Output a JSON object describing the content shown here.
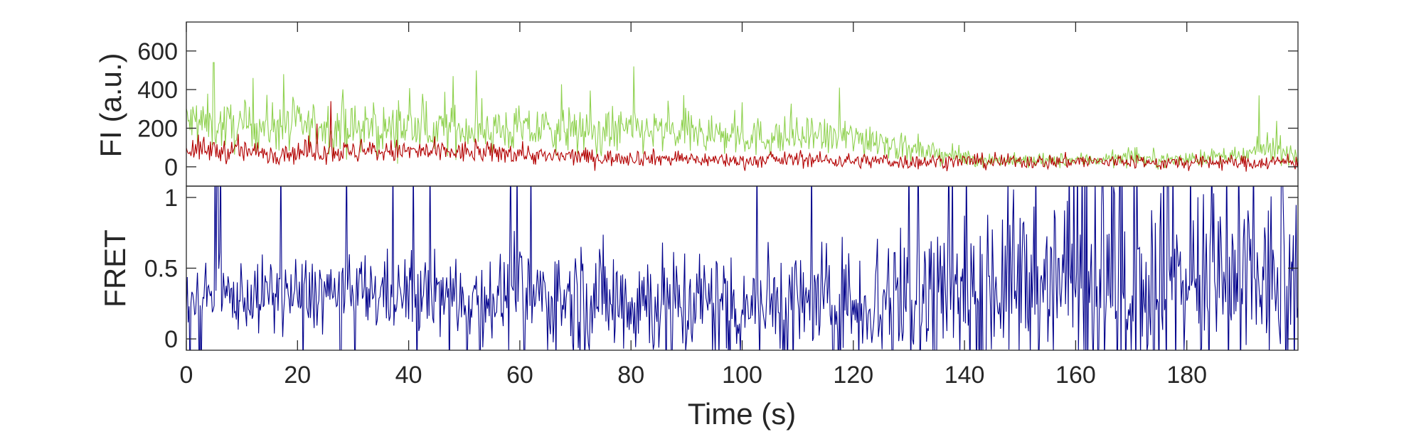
{
  "chart_data": [
    {
      "type": "line",
      "panel": "intensity",
      "ylabel": "FI (a.u.)",
      "xlabel": "",
      "xlim": [
        0,
        200
      ],
      "ylim": [
        -100,
        750
      ],
      "yticks": [
        0,
        200,
        400,
        600
      ],
      "ytick_labels": [
        "0",
        "200",
        "400",
        "600"
      ],
      "grid": false,
      "legend": "none",
      "series": [
        {
          "color": "#8fd14f",
          "x": [
            0,
            5,
            10,
            15,
            20,
            25,
            30,
            35,
            40,
            45,
            50,
            55,
            60,
            65,
            70,
            75,
            80,
            85,
            90,
            95,
            100,
            105,
            110,
            115,
            120,
            125,
            130,
            135,
            140,
            145,
            150,
            155,
            160,
            165,
            170,
            175,
            180,
            185,
            190,
            195,
            200
          ],
          "values": [
            230,
            220,
            200,
            215,
            205,
            210,
            195,
            190,
            205,
            185,
            200,
            195,
            190,
            185,
            180,
            175,
            190,
            180,
            170,
            165,
            160,
            150,
            155,
            150,
            150,
            145,
            80,
            70,
            45,
            35,
            30,
            30,
            35,
            40,
            45,
            35,
            40,
            50,
            45,
            110,
            55
          ],
          "peaks": [
            [
              4.9,
              540
            ],
            [
              12,
              460
            ],
            [
              17.5,
              480
            ],
            [
              48,
              470
            ],
            [
              80.5,
              520
            ],
            [
              117.5,
              410
            ],
            [
              193,
              370
            ]
          ]
        },
        {
          "color": "#b30000",
          "x": [
            0,
            5,
            10,
            15,
            20,
            25,
            30,
            35,
            40,
            45,
            50,
            55,
            60,
            65,
            70,
            75,
            80,
            85,
            90,
            95,
            100,
            105,
            110,
            115,
            120,
            125,
            130,
            135,
            140,
            145,
            150,
            155,
            160,
            165,
            170,
            175,
            180,
            185,
            190,
            195,
            200
          ],
          "values": [
            95,
            85,
            80,
            70,
            75,
            85,
            75,
            80,
            80,
            75,
            75,
            70,
            75,
            50,
            55,
            45,
            50,
            45,
            40,
            35,
            30,
            35,
            40,
            35,
            30,
            30,
            25,
            30,
            30,
            25,
            30,
            25,
            30,
            25,
            30,
            20,
            20,
            25,
            20,
            25,
            25
          ],
          "peaks": [
            [
              26,
              340
            ]
          ]
        }
      ]
    },
    {
      "type": "line",
      "panel": "fret",
      "ylabel": "FRET",
      "xlabel": "Time (s)",
      "xlim": [
        0,
        200
      ],
      "ylim": [
        -0.08,
        1.08
      ],
      "yticks": [
        0,
        0.5,
        1
      ],
      "ytick_labels": [
        "0",
        "0.5",
        "1"
      ],
      "xticks": [
        0,
        20,
        40,
        60,
        80,
        100,
        120,
        140,
        160,
        180
      ],
      "xtick_labels": [
        "0",
        "20",
        "40",
        "60",
        "80",
        "100",
        "120",
        "140",
        "160",
        "180"
      ],
      "grid": false,
      "legend": "none",
      "series": [
        {
          "color": "#00008b",
          "x": [
            0,
            10,
            20,
            30,
            40,
            50,
            60,
            70,
            80,
            90,
            100,
            110,
            120,
            128,
            140,
            150,
            160,
            170,
            180,
            190,
            200
          ],
          "values": [
            0.3,
            0.3,
            0.32,
            0.33,
            0.32,
            0.3,
            0.3,
            0.28,
            0.28,
            0.25,
            0.25,
            0.25,
            0.25,
            0.3,
            0.4,
            0.42,
            0.4,
            0.42,
            0.4,
            0.4,
            0.4
          ],
          "noise": [
            0.15,
            0.17,
            0.2,
            0.2,
            0.2,
            0.22,
            0.25,
            0.28,
            0.3,
            0.3,
            0.3,
            0.3,
            0.3,
            0.4,
            0.45,
            0.45,
            0.45,
            0.45,
            0.45,
            0.45,
            0.45
          ]
        }
      ]
    }
  ]
}
